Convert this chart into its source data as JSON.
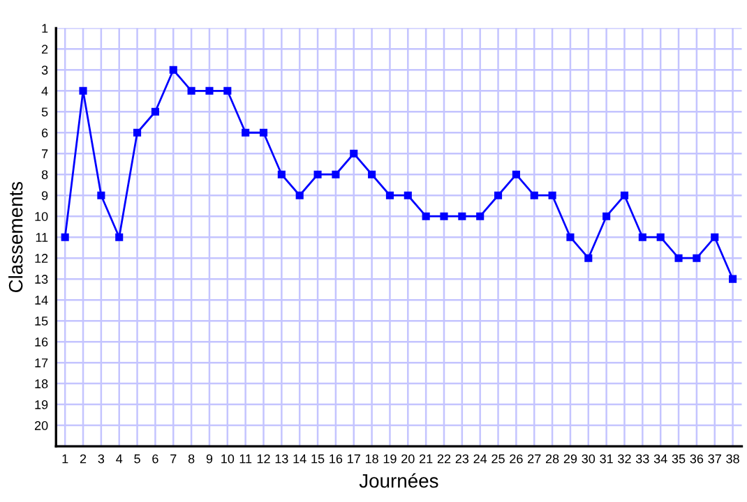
{
  "chart_data": {
    "type": "line",
    "xlabel": "Journées",
    "ylabel": "Classements",
    "x": [
      1,
      2,
      3,
      4,
      5,
      6,
      7,
      8,
      9,
      10,
      11,
      12,
      13,
      14,
      15,
      16,
      17,
      18,
      19,
      20,
      21,
      22,
      23,
      24,
      25,
      26,
      27,
      28,
      29,
      30,
      31,
      32,
      33,
      34,
      35,
      36,
      37,
      38
    ],
    "series": [
      {
        "color": "#0000ff",
        "values": [
          11,
          4,
          9,
          11,
          6,
          5,
          3,
          4,
          4,
          4,
          6,
          6,
          8,
          9,
          8,
          8,
          7,
          8,
          9,
          9,
          10,
          10,
          10,
          10,
          9,
          8,
          9,
          9,
          11,
          12,
          10,
          9,
          11,
          11,
          12,
          12,
          11,
          13
        ]
      }
    ],
    "xlim": [
      0.5,
      38.5
    ],
    "ylim": [
      21,
      1
    ],
    "xticks": [
      1,
      2,
      3,
      4,
      5,
      6,
      7,
      8,
      9,
      10,
      11,
      12,
      13,
      14,
      15,
      16,
      17,
      18,
      19,
      20,
      21,
      22,
      23,
      24,
      25,
      26,
      27,
      28,
      29,
      30,
      31,
      32,
      33,
      34,
      35,
      36,
      37,
      38
    ],
    "yticks": [
      1,
      2,
      3,
      4,
      5,
      6,
      7,
      8,
      9,
      10,
      11,
      12,
      13,
      14,
      15,
      16,
      17,
      18,
      19,
      20,
      {
        "value": 21,
        "label": null
      }
    ],
    "grid": true,
    "marker": "square",
    "line_style": "solid",
    "legend": false
  }
}
